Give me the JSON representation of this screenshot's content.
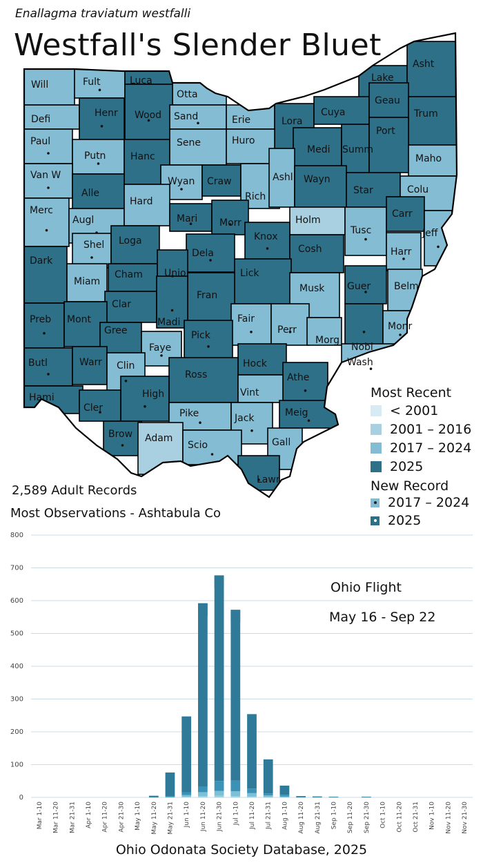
{
  "header": {
    "scientific_name": "Enallagma traviatum westfalli",
    "common_name": "Westfall's Slender Bluet"
  },
  "colors": {
    "before_2001": "#d6ebf2",
    "y2001_2016": "#a9d0e1",
    "y2017_2024": "#84bdd3",
    "y2025": "#2e7088",
    "bar_base": "#3a93b6",
    "bar_top": "#2e7a98",
    "bar_light": "#9fd0e3"
  },
  "legend": {
    "most_recent_title": "Most Recent",
    "most_recent_items": [
      "< 2001",
      "2001 – 2016",
      "2017 – 2024",
      "2025"
    ],
    "new_record_title": "New Record",
    "new_record_items": [
      "2017 – 2024",
      "2025"
    ]
  },
  "stats": {
    "records": "2,589 Adult Records",
    "most_obs": "Most Observations - Ashtabula Co"
  },
  "counties": {
    "Will": "2017-2024",
    "Fult": "2017-2024",
    "Luca": "2025",
    "Otta": "2017-2024",
    "Lake": "2025",
    "Asht": "2025",
    "Defi": "2017-2024",
    "Henr": "2025",
    "Wood": "2025",
    "Sand": "2017-2024",
    "Erie": "2017-2024",
    "Lora": "2025",
    "Cuya": "2025",
    "Geau": "2025",
    "Trum": "2025",
    "Paul": "2017-2024",
    "Putn": "2017-2024",
    "Hanc": "2025",
    "Sene": "2017-2024",
    "Huro": "2017-2024",
    "Medi": "2025",
    "Summ": "2025",
    "Port": "2025",
    "Maho": "2017-2024",
    "Van W": "2017-2024",
    "Alle": "2025",
    "Wyan": "2017-2024",
    "Craw": "2025",
    "Rich": "2017-2024",
    "Ashl": "2017-2024",
    "Wayn": "2025",
    "Star": "2025",
    "Colu": "2017-2024",
    "Merc": "2017-2024",
    "Augl": "2017-2024",
    "Hard": "2017-2024",
    "Mari": "2025",
    "Morr": "2025",
    "Holm": "2001-2016",
    "Tusc": "2017-2024",
    "Carr": "2025",
    "Jeff": "2017-2024",
    "Shel": "2017-2024",
    "Loga": "2025",
    "Knox": "2025",
    "Harr": "2017-2024",
    "Dark": "2025",
    "Dela": "2025",
    "Cosh": "2025",
    "Miam": "2017-2024",
    "Cham": "2025",
    "Unio": "2025",
    "Lick": "2025",
    "Musk": "2017-2024",
    "Guer": "2025",
    "Belm": "2017-2024",
    "Clar": "2025",
    "Fran": "2025",
    "Preb": "2025",
    "Mont": "2025",
    "Madi": "2025",
    "Fair": "2017-2024",
    "Perr": "2017-2024",
    "Nobl": "2025",
    "Monr": "2017-2024",
    "Gree": "2025",
    "Faye": "2017-2024",
    "Pick": "2025",
    "Morg": "2017-2024",
    "Butl": "2025",
    "Warr": "2025",
    "Clin": "2017-2024",
    "Hock": "2025",
    "Wash": "2017-2024",
    "Ross": "2025",
    "Athe": "2025",
    "Hami": "2025",
    "High": "2025",
    "Vint": "2017-2024",
    "Cler": "2025",
    "Meig": "2025",
    "Pike": "2017-2024",
    "Jack": "2017-2024",
    "Brow": "2025",
    "Adam": "2001-2016",
    "Scio": "2017-2024",
    "Gall": "2017-2024",
    "Lawr": "2025"
  },
  "chart_data": {
    "type": "bar",
    "stacked": true,
    "title": "Ohio Flight",
    "subtitle": "May 16 - Sep 22",
    "xlabel": "",
    "ylabel": "",
    "ylim": [
      0,
      800
    ],
    "yticks": [
      0,
      100,
      200,
      300,
      400,
      500,
      600,
      700,
      800
    ],
    "grid": true,
    "categories": [
      "Mar 1-10",
      "Mar 11-20",
      "Mar 21-31",
      "Apr 1-10",
      "Apr 11-20",
      "Apr 21-30",
      "May 1-10",
      "May 11-20",
      "May 21-31",
      "Jun 1-10",
      "Jun 11-20",
      "Jun 21-30",
      "Jul 1-10",
      "Jul 11-20",
      "Jul 21-31",
      "Aug 1-10",
      "Aug 11-20",
      "Aug 21-31",
      "Sep 1-10",
      "Sep 11-20",
      "Sep 21-30",
      "Oct 1-10",
      "Oct 11-20",
      "Oct 21-31",
      "Nov 1-10",
      "Nov 11-20",
      "Nov 21-30"
    ],
    "series": [
      {
        "name": "< 2001",
        "values": [
          0,
          0,
          0,
          0,
          0,
          0,
          0,
          0,
          0,
          2,
          4,
          5,
          4,
          3,
          1,
          0,
          0,
          0,
          0,
          0,
          0,
          0,
          0,
          0,
          0,
          0,
          0
        ]
      },
      {
        "name": "2001 – 2016",
        "values": [
          0,
          0,
          0,
          0,
          0,
          0,
          0,
          0,
          1,
          5,
          12,
          15,
          15,
          10,
          5,
          3,
          0,
          0,
          0,
          0,
          0,
          0,
          0,
          0,
          0,
          0,
          0
        ]
      },
      {
        "name": "2017 – 2024",
        "values": [
          0,
          0,
          0,
          0,
          0,
          0,
          0,
          1,
          3,
          8,
          16,
          30,
          32,
          14,
          6,
          5,
          1,
          1,
          0,
          0,
          0,
          0,
          0,
          0,
          0,
          0,
          0
        ]
      },
      {
        "name": "2025",
        "values": [
          0,
          0,
          0,
          0,
          0,
          0,
          0,
          4,
          72,
          232,
          560,
          627,
          521,
          227,
          104,
          28,
          3,
          2,
          2,
          0,
          2,
          0,
          0,
          0,
          0,
          0,
          0
        ]
      }
    ],
    "totals": [
      0,
      0,
      0,
      0,
      0,
      0,
      0,
      5,
      76,
      247,
      592,
      677,
      572,
      254,
      116,
      36,
      4,
      3,
      2,
      0,
      2,
      0,
      0,
      0,
      0,
      0,
      0
    ]
  },
  "footer": "Ohio Odonata Society Database, 2025"
}
